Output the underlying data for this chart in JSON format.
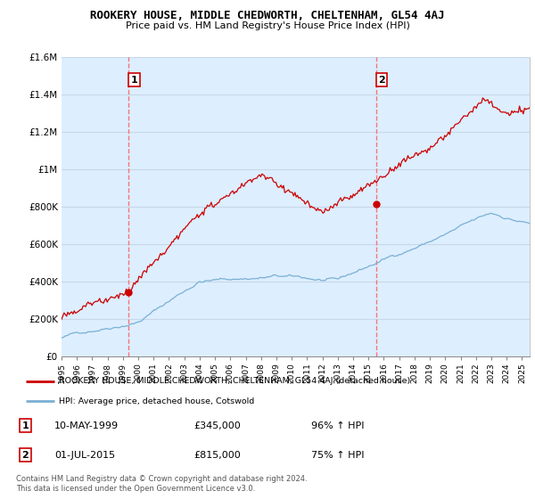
{
  "title": "ROOKERY HOUSE, MIDDLE CHEDWORTH, CHELTENHAM, GL54 4AJ",
  "subtitle": "Price paid vs. HM Land Registry's House Price Index (HPI)",
  "ylim": [
    0,
    1600000
  ],
  "yticks": [
    0,
    200000,
    400000,
    600000,
    800000,
    1000000,
    1200000,
    1400000,
    1600000
  ],
  "ytick_labels": [
    "£0",
    "£200K",
    "£400K",
    "£600K",
    "£800K",
    "£1M",
    "£1.2M",
    "£1.4M",
    "£1.6M"
  ],
  "sale1_year": 1999.36,
  "sale1_price": 345000,
  "sale2_year": 2015.5,
  "sale2_price": 815000,
  "red_line_color": "#cc0000",
  "blue_line_color": "#7ab0d4",
  "dashed_line_color": "#ff6666",
  "grid_color": "#c8d8e8",
  "plot_bg_color": "#ddeeff",
  "background_color": "#ffffff",
  "legend_text_red": "ROOKERY HOUSE, MIDDLE CHEDWORTH, CHELTENHAM, GL54 4AJ (detached house)",
  "legend_text_blue": "HPI: Average price, detached house, Cotswold",
  "annotation1_date": "10-MAY-1999",
  "annotation1_price": "£345,000",
  "annotation1_hpi": "96% ↑ HPI",
  "annotation2_date": "01-JUL-2015",
  "annotation2_price": "£815,000",
  "annotation2_hpi": "75% ↑ HPI",
  "copyright_text": "Contains HM Land Registry data © Crown copyright and database right 2024.\nThis data is licensed under the Open Government Licence v3.0.",
  "xmin": 1995.0,
  "xmax": 2025.5
}
